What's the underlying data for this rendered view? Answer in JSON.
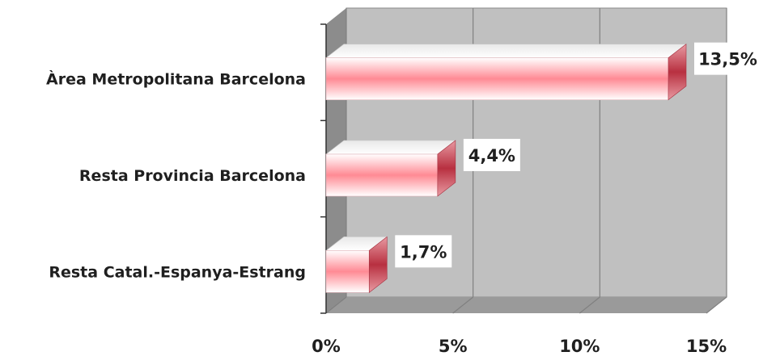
{
  "chart_data": {
    "type": "bar",
    "orientation": "horizontal",
    "three_d": true,
    "categories": [
      "Àrea Metropolitana Barcelona",
      "Resta Provincia Barcelona",
      "Resta Catal.-Espanya-Estrang"
    ],
    "values": [
      13.5,
      4.4,
      1.7
    ],
    "data_labels": [
      "13,5%",
      "4,4%",
      "1,7%"
    ],
    "xlim": [
      0,
      15
    ],
    "xticks": [
      0,
      5,
      10,
      15
    ],
    "xtick_labels": [
      "0%",
      "5%",
      "10%",
      "15%"
    ],
    "grid": true,
    "legend": "none",
    "colors": {
      "wall": "#c0c0c0",
      "floor": "#9a9a9a",
      "side_wall": "#8c8c8c",
      "bar": "#ff8a94",
      "bar_highlight": "#ffffff",
      "bar_side": "#c03848",
      "label_box": "#ffffff"
    }
  }
}
